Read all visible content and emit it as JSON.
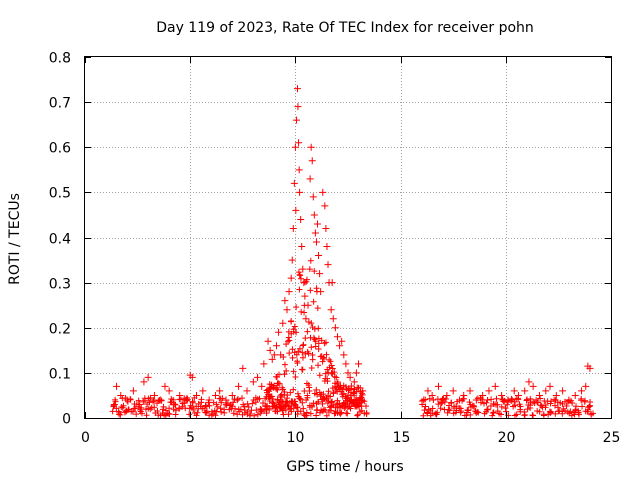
{
  "chart_data": {
    "type": "scatter",
    "title": "Day 119 of 2023, Rate Of TEC Index for receiver pohn",
    "xlabel": "GPS time / hours",
    "ylabel": "ROTI / TECUs",
    "xlim": [
      0,
      25
    ],
    "ylim": [
      0,
      0.8
    ],
    "x_ticks": [
      "0",
      "5",
      "10",
      "15",
      "20",
      "25"
    ],
    "y_ticks": [
      "0",
      "0.1",
      "0.2",
      "0.3",
      "0.4",
      "0.5",
      "0.6",
      "0.7",
      "0.8"
    ],
    "grid": true,
    "marker": "plus",
    "color": "#ff0000",
    "series": [
      {
        "points": [
          [
            1.4,
            0.03
          ],
          [
            1.5,
            0.07
          ],
          [
            1.7,
            0.05
          ],
          [
            2.0,
            0.04
          ],
          [
            2.3,
            0.06
          ],
          [
            2.6,
            0.03
          ],
          [
            2.8,
            0.08
          ],
          [
            3.0,
            0.09
          ],
          [
            3.3,
            0.05
          ],
          [
            3.6,
            0.04
          ],
          [
            3.8,
            0.07
          ],
          [
            4.0,
            0.06
          ],
          [
            4.2,
            0.03
          ],
          [
            4.5,
            0.05
          ],
          [
            4.8,
            0.04
          ],
          [
            5.0,
            0.095
          ],
          [
            5.1,
            0.09
          ],
          [
            5.3,
            0.05
          ],
          [
            5.6,
            0.06
          ],
          [
            5.9,
            0.04
          ],
          [
            6.2,
            0.05
          ],
          [
            6.4,
            0.06
          ],
          [
            6.7,
            0.04
          ],
          [
            7.0,
            0.05
          ],
          [
            7.3,
            0.07
          ],
          [
            7.5,
            0.11
          ],
          [
            7.7,
            0.06
          ],
          [
            8.0,
            0.08
          ],
          [
            8.2,
            0.09
          ],
          [
            8.4,
            0.07
          ],
          [
            8.5,
            0.12
          ],
          [
            8.7,
            0.17
          ],
          [
            8.8,
            0.15
          ],
          [
            8.9,
            0.13
          ],
          [
            9.0,
            0.14
          ],
          [
            9.1,
            0.16
          ],
          [
            9.2,
            0.19
          ],
          [
            9.3,
            0.14
          ],
          [
            9.4,
            0.21
          ],
          [
            9.5,
            0.26
          ],
          [
            9.6,
            0.24
          ],
          [
            9.7,
            0.28
          ],
          [
            9.8,
            0.31
          ],
          [
            9.85,
            0.35
          ],
          [
            9.9,
            0.42
          ],
          [
            9.95,
            0.52
          ],
          [
            10.0,
            0.6
          ],
          [
            10.02,
            0.46
          ],
          [
            10.05,
            0.66
          ],
          [
            10.1,
            0.73
          ],
          [
            10.12,
            0.69
          ],
          [
            10.15,
            0.61
          ],
          [
            10.18,
            0.55
          ],
          [
            10.2,
            0.5
          ],
          [
            10.25,
            0.44
          ],
          [
            10.3,
            0.38
          ],
          [
            10.35,
            0.33
          ],
          [
            10.4,
            0.3
          ],
          [
            10.45,
            0.27
          ],
          [
            10.5,
            0.22
          ],
          [
            10.6,
            0.25
          ],
          [
            10.7,
            0.53
          ],
          [
            10.75,
            0.6
          ],
          [
            10.8,
            0.57
          ],
          [
            10.85,
            0.49
          ],
          [
            10.9,
            0.45
          ],
          [
            10.95,
            0.41
          ],
          [
            11.0,
            0.39
          ],
          [
            11.05,
            0.43
          ],
          [
            11.1,
            0.36
          ],
          [
            11.15,
            0.32
          ],
          [
            11.2,
            0.28
          ],
          [
            11.3,
            0.5
          ],
          [
            11.4,
            0.47
          ],
          [
            11.45,
            0.42
          ],
          [
            11.5,
            0.38
          ],
          [
            11.55,
            0.34
          ],
          [
            11.6,
            0.3
          ],
          [
            11.7,
            0.24
          ],
          [
            11.75,
            0.3
          ],
          [
            11.8,
            0.22
          ],
          [
            11.9,
            0.2
          ],
          [
            12.0,
            0.18
          ],
          [
            12.1,
            0.16
          ],
          [
            12.2,
            0.17
          ],
          [
            12.3,
            0.14
          ],
          [
            12.4,
            0.12
          ],
          [
            12.5,
            0.1
          ],
          [
            12.6,
            0.09
          ],
          [
            12.8,
            0.08
          ],
          [
            12.9,
            0.1
          ],
          [
            13.0,
            0.12
          ],
          [
            13.2,
            0.06
          ],
          [
            16.1,
            0.04
          ],
          [
            16.3,
            0.06
          ],
          [
            16.5,
            0.05
          ],
          [
            16.8,
            0.07
          ],
          [
            17.0,
            0.04
          ],
          [
            17.2,
            0.05
          ],
          [
            17.5,
            0.06
          ],
          [
            17.8,
            0.04
          ],
          [
            18.0,
            0.05
          ],
          [
            18.3,
            0.06
          ],
          [
            18.6,
            0.04
          ],
          [
            18.9,
            0.05
          ],
          [
            19.2,
            0.06
          ],
          [
            19.5,
            0.07
          ],
          [
            19.8,
            0.05
          ],
          [
            20.1,
            0.04
          ],
          [
            20.4,
            0.06
          ],
          [
            20.6,
            0.05
          ],
          [
            20.9,
            0.06
          ],
          [
            21.1,
            0.08
          ],
          [
            21.3,
            0.07
          ],
          [
            21.6,
            0.05
          ],
          [
            21.9,
            0.06
          ],
          [
            22.1,
            0.07
          ],
          [
            22.4,
            0.05
          ],
          [
            22.7,
            0.06
          ],
          [
            23.0,
            0.04
          ],
          [
            23.3,
            0.05
          ],
          [
            23.6,
            0.06
          ],
          [
            23.8,
            0.07
          ],
          [
            23.9,
            0.115
          ],
          [
            24.0,
            0.11
          ]
        ]
      }
    ]
  }
}
